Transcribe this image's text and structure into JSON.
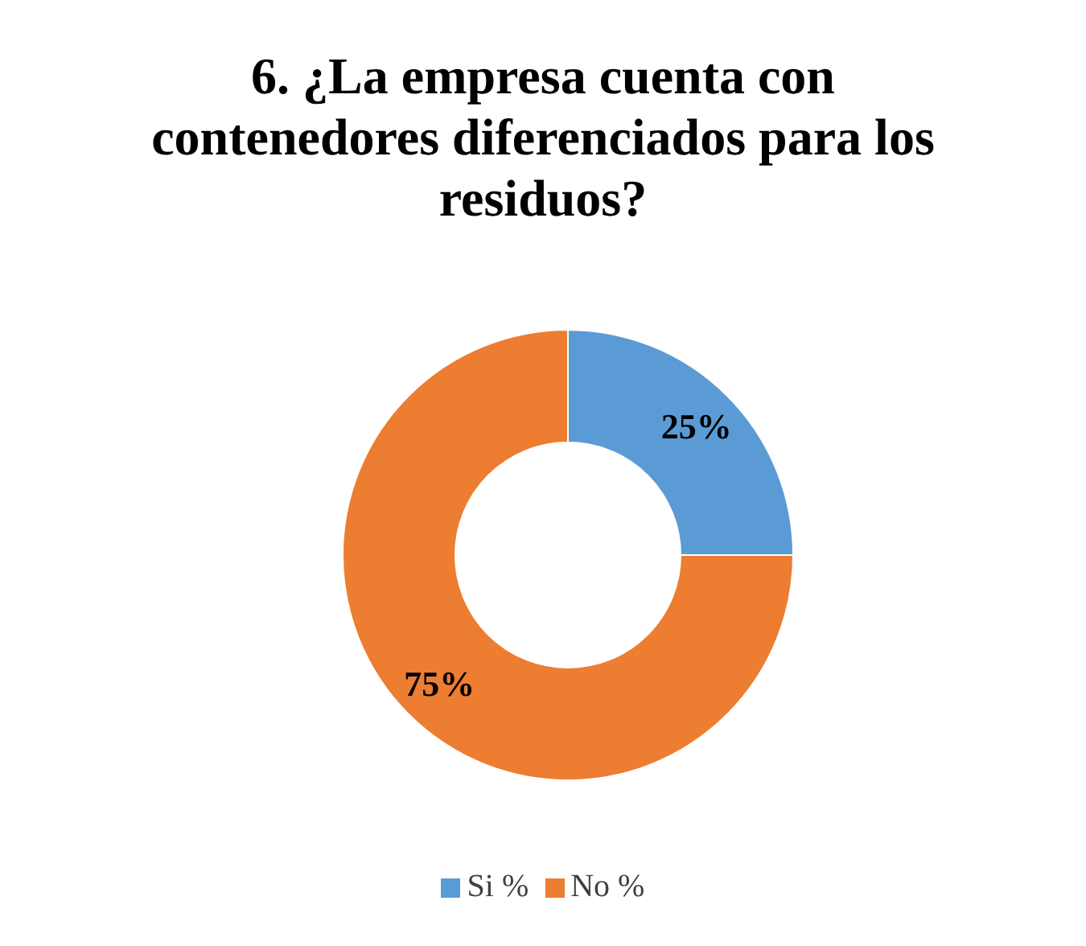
{
  "chart_data": {
    "type": "donut",
    "title": "6. ¿La empresa cuenta con contenedores diferenciados para los residuos?",
    "categories": [
      "Si %",
      "No %"
    ],
    "values": [
      25,
      75
    ],
    "colors": [
      "#5b9bd5",
      "#ed7d31"
    ],
    "value_labels": [
      "25%",
      "75%"
    ],
    "legend": "bottom"
  }
}
